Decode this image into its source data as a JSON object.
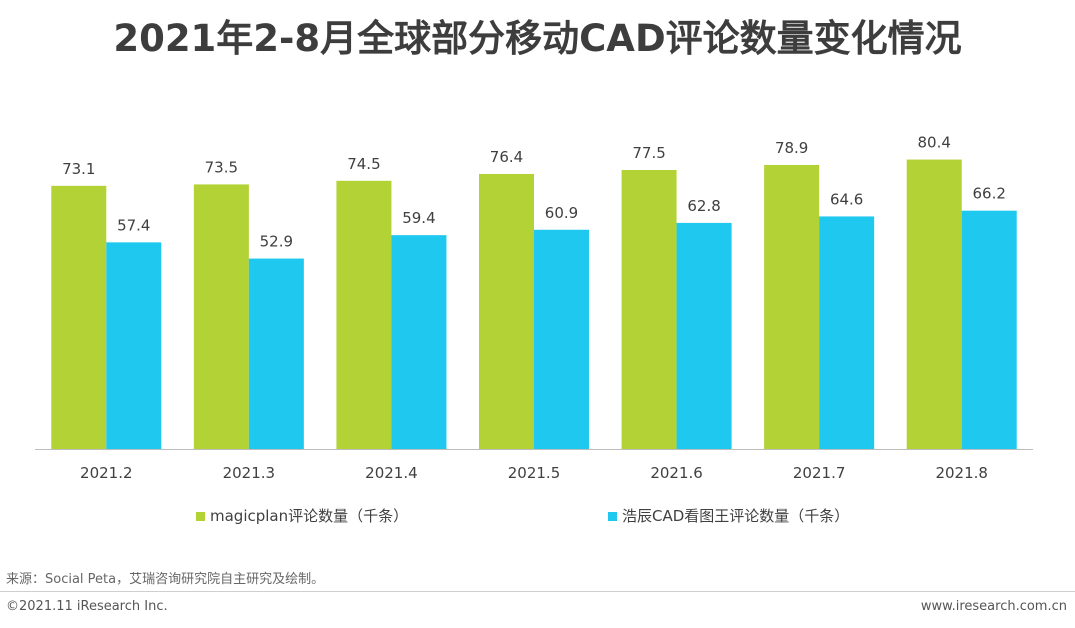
{
  "colors": {
    "series1": "#b2d235",
    "series2": "#1ec8ef",
    "axis": "#bdbdbd",
    "text": "#404040"
  },
  "footer": {
    "source": "来源：Social Peta，艾瑞咨询研究院自主研究及绘制。",
    "copyright": "©2021.11 iResearch Inc.",
    "website": "www.iresearch.com.cn"
  },
  "chart_data": {
    "type": "bar",
    "title": "2021年2-8月全球部分移动CAD评论数量变化情况",
    "categories": [
      "2021.2",
      "2021.3",
      "2021.4",
      "2021.5",
      "2021.6",
      "2021.7",
      "2021.8"
    ],
    "series": [
      {
        "name": "magicplan评论数量（千条）",
        "values": [
          73.1,
          73.5,
          74.5,
          76.4,
          77.5,
          78.9,
          80.4
        ],
        "labels": [
          "73.1",
          "73.5",
          "74.5",
          "76.4",
          "77.5",
          "78.9",
          "80.4"
        ],
        "color": "#b2d235"
      },
      {
        "name": "浩辰CAD看图王评论数量（千条）",
        "values": [
          57.4,
          52.9,
          59.4,
          60.9,
          62.8,
          64.6,
          66.2
        ],
        "labels": [
          "57.4",
          "52.9",
          "59.4",
          "60.9",
          "62.8",
          "64.6",
          "66.2"
        ],
        "color": "#1ec8ef"
      }
    ],
    "xlabel": "",
    "ylabel": "",
    "ylim": [
      0,
      100
    ],
    "grid": false,
    "legend_position": "bottom"
  }
}
